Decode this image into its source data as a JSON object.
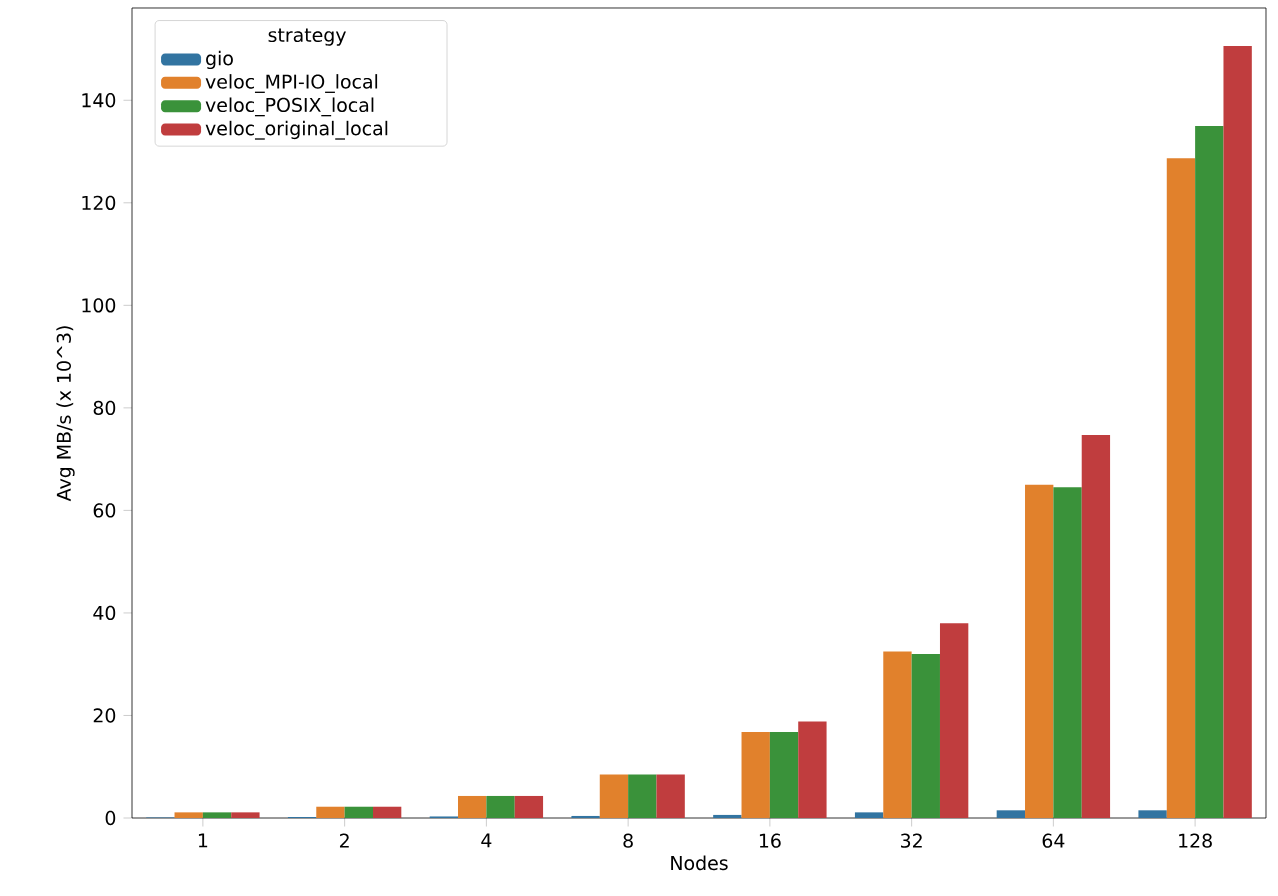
{
  "chart_data": {
    "type": "bar",
    "xlabel": "Nodes",
    "ylabel": "Avg MB/s (x 10^3)",
    "legend_title": "strategy",
    "legend": "top left",
    "categories": [
      "1",
      "2",
      "4",
      "8",
      "16",
      "32",
      "64",
      "128"
    ],
    "series": [
      {
        "name": "gio",
        "color": "#3274a1",
        "values": [
          0.1,
          0.2,
          0.3,
          0.4,
          0.6,
          1.1,
          1.5,
          1.5
        ]
      },
      {
        "name": "veloc_MPI-IO_local",
        "color": "#e1812c",
        "values": [
          1.1,
          2.2,
          4.3,
          8.5,
          16.8,
          32.5,
          65,
          128.7
        ]
      },
      {
        "name": "veloc_POSIX_local",
        "color": "#3a923a",
        "values": [
          1.1,
          2.2,
          4.3,
          8.5,
          16.8,
          32,
          64.5,
          135
        ]
      },
      {
        "name": "veloc_original_local",
        "color": "#c03d3e",
        "values": [
          1.1,
          2.2,
          4.3,
          8.5,
          18.8,
          38,
          74.7,
          150.6
        ]
      }
    ],
    "ylim": [
      0,
      158
    ],
    "yticks": [
      0,
      20,
      40,
      60,
      80,
      100,
      120,
      140
    ]
  }
}
